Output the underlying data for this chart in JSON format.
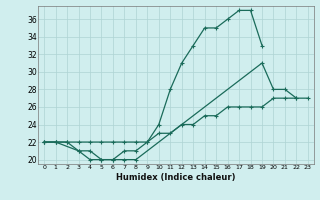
{
  "xlabel": "Humidex (Indice chaleur)",
  "x": [
    0,
    1,
    2,
    3,
    4,
    5,
    6,
    7,
    8,
    9,
    10,
    11,
    12,
    13,
    14,
    15,
    16,
    17,
    18,
    19,
    20,
    21,
    22,
    23
  ],
  "curve1_x": [
    0,
    1,
    2,
    3,
    4,
    5,
    6,
    7,
    8,
    9,
    10,
    11,
    12,
    13,
    14,
    15,
    16,
    17,
    18,
    19
  ],
  "curve1_y": [
    22,
    22,
    22,
    21,
    20,
    20,
    20,
    21,
    21,
    22,
    24,
    28,
    31,
    33,
    35,
    35,
    36,
    37,
    37,
    33
  ],
  "curve2_x": [
    0,
    1,
    3,
    4,
    5,
    6,
    7,
    8,
    19,
    20,
    21,
    22
  ],
  "curve2_y": [
    22,
    22,
    21,
    21,
    20,
    20,
    20,
    20,
    31,
    28,
    28,
    27
  ],
  "curve3_x": [
    0,
    1,
    2,
    3,
    4,
    5,
    6,
    7,
    8,
    9,
    10,
    11,
    12,
    13,
    14,
    15,
    16,
    17,
    18,
    19,
    20,
    21,
    22,
    23
  ],
  "curve3_y": [
    22,
    22,
    22,
    22,
    22,
    22,
    22,
    22,
    22,
    22,
    23,
    23,
    24,
    24,
    25,
    25,
    26,
    26,
    26,
    26,
    27,
    27,
    27,
    27
  ],
  "line_color": "#1a6b5a",
  "bg_color": "#d0eeee",
  "grid_color": "#aed4d4",
  "ylim": [
    19.5,
    37.5
  ],
  "yticks": [
    20,
    22,
    24,
    26,
    28,
    30,
    32,
    34,
    36
  ],
  "xlim": [
    -0.5,
    23.5
  ],
  "xtick_fontsize": 4.5,
  "ytick_fontsize": 5.5,
  "xlabel_fontsize": 6
}
